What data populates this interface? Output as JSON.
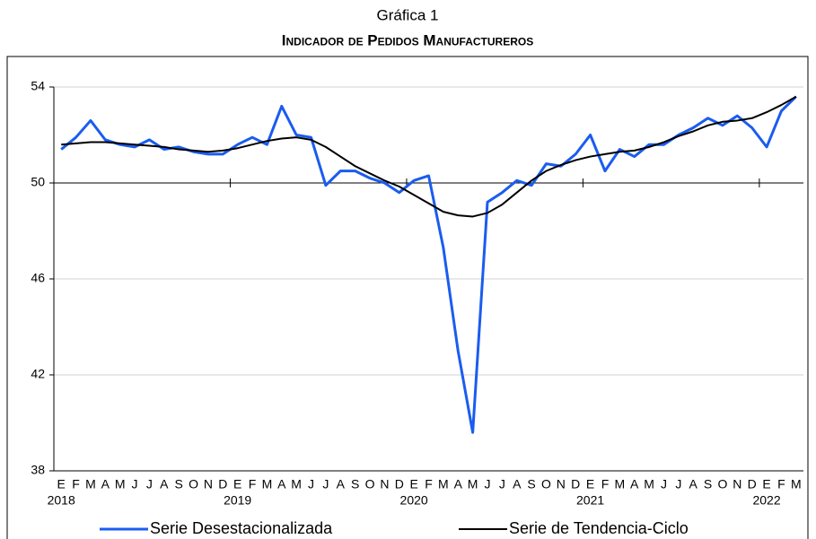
{
  "chart_data": {
    "type": "line",
    "title": "Gráfica 1",
    "subtitle": "Indicador de Pedidos Manufactureros",
    "categories": [
      "E",
      "F",
      "M",
      "A",
      "M",
      "J",
      "J",
      "A",
      "S",
      "O",
      "N",
      "D",
      "E",
      "F",
      "M",
      "A",
      "M",
      "J",
      "J",
      "A",
      "S",
      "O",
      "N",
      "D",
      "E",
      "F",
      "M",
      "A",
      "M",
      "J",
      "J",
      "A",
      "S",
      "O",
      "N",
      "D",
      "E",
      "F",
      "M",
      "A",
      "M",
      "J",
      "J",
      "A",
      "S",
      "O",
      "N",
      "D",
      "E",
      "F",
      "M"
    ],
    "years": [
      "2018",
      null,
      null,
      null,
      null,
      null,
      null,
      null,
      null,
      null,
      null,
      null,
      "2019",
      null,
      null,
      null,
      null,
      null,
      null,
      null,
      null,
      null,
      null,
      null,
      "2020",
      null,
      null,
      null,
      null,
      null,
      null,
      null,
      null,
      null,
      null,
      null,
      "2021",
      null,
      null,
      null,
      null,
      null,
      null,
      null,
      null,
      null,
      null,
      null,
      "2022",
      null,
      null
    ],
    "series": [
      {
        "name": "Serie Desestacionalizada",
        "color": "#1a5cf0",
        "values": [
          51.4,
          51.9,
          52.6,
          51.8,
          51.6,
          51.5,
          51.8,
          51.4,
          51.5,
          51.3,
          51.2,
          51.2,
          51.6,
          51.9,
          51.6,
          53.2,
          52.0,
          51.9,
          49.9,
          50.5,
          50.5,
          50.2,
          50.0,
          49.6,
          50.1,
          50.3,
          47.3,
          43.0,
          39.6,
          49.2,
          49.6,
          50.1,
          49.9,
          50.8,
          50.7,
          51.2,
          52.0,
          50.5,
          51.4,
          51.1,
          51.6,
          51.6,
          52.0,
          52.3,
          52.7,
          52.4,
          52.8,
          52.3,
          51.5,
          53.0,
          53.6
        ]
      },
      {
        "name": "Serie de Tendencia-Ciclo",
        "color": "#000000",
        "values": [
          51.6,
          51.65,
          51.7,
          51.7,
          51.65,
          51.6,
          51.55,
          51.5,
          51.4,
          51.35,
          51.3,
          51.35,
          51.45,
          51.6,
          51.75,
          51.85,
          51.9,
          51.8,
          51.5,
          51.1,
          50.7,
          50.4,
          50.1,
          49.85,
          49.5,
          49.15,
          48.8,
          48.65,
          48.6,
          48.75,
          49.1,
          49.6,
          50.1,
          50.5,
          50.75,
          50.95,
          51.1,
          51.2,
          51.3,
          51.35,
          51.5,
          51.7,
          51.95,
          52.15,
          52.4,
          52.55,
          52.6,
          52.7,
          52.95,
          53.25,
          53.6
        ]
      }
    ],
    "ylim": [
      38,
      54
    ],
    "yticks": [
      38,
      42,
      46,
      50,
      54
    ],
    "grid": true,
    "x_axis_crosses": 50,
    "legend": "bottom"
  }
}
